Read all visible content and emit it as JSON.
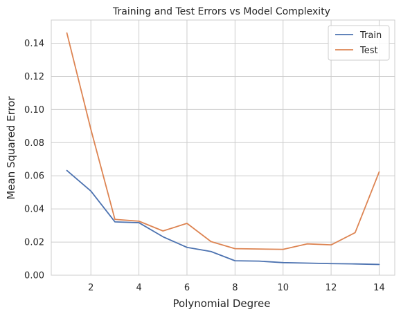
{
  "chart_data": {
    "type": "line",
    "title": "Training and Test Errors vs Model Complexity",
    "xlabel": "Polynomial Degree",
    "ylabel": "Mean Squared Error",
    "x": [
      1,
      2,
      3,
      4,
      5,
      6,
      7,
      8,
      9,
      10,
      11,
      12,
      13,
      14
    ],
    "xlim": [
      0.35,
      14.65
    ],
    "ylim": [
      0,
      0.154
    ],
    "xticks": [
      2,
      4,
      6,
      8,
      10,
      12,
      14
    ],
    "yticks": [
      0.0,
      0.02,
      0.04,
      0.06,
      0.08,
      0.1,
      0.12,
      0.14
    ],
    "xtick_labels": [
      "2",
      "4",
      "6",
      "8",
      "10",
      "12",
      "14"
    ],
    "ytick_labels": [
      "0.00",
      "0.02",
      "0.04",
      "0.06",
      "0.08",
      "0.10",
      "0.12",
      "0.14"
    ],
    "grid": true,
    "legend_position": "top-right",
    "series": [
      {
        "name": "Train",
        "color": "#4c72b0",
        "values": [
          0.0632,
          0.0508,
          0.0322,
          0.0317,
          0.0232,
          0.0168,
          0.0143,
          0.0087,
          0.0085,
          0.0076,
          0.0073,
          0.007,
          0.0068,
          0.0065
        ]
      },
      {
        "name": "Test",
        "color": "#dd8452",
        "values": [
          0.1462,
          0.088,
          0.0337,
          0.0326,
          0.0267,
          0.0313,
          0.0203,
          0.016,
          0.0158,
          0.0156,
          0.0189,
          0.0183,
          0.0257,
          0.0623
        ]
      }
    ]
  }
}
